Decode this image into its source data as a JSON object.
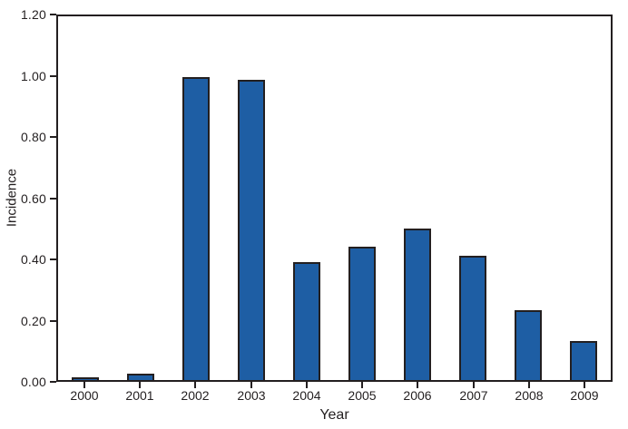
{
  "chart_data": {
    "type": "bar",
    "title": "",
    "xlabel": "Year",
    "ylabel": "Incidence",
    "categories": [
      "2000",
      "2001",
      "2002",
      "2003",
      "2004",
      "2005",
      "2006",
      "2007",
      "2008",
      "2009"
    ],
    "values": [
      0.01,
      0.02,
      1.0,
      0.99,
      0.39,
      0.44,
      0.5,
      0.41,
      0.23,
      0.13
    ],
    "ylim": [
      0,
      1.2
    ],
    "yticks": [
      0.0,
      0.2,
      0.4,
      0.6,
      0.8,
      1.0,
      1.2
    ],
    "ytick_labels": [
      "0.00",
      "0.20",
      "0.40",
      "0.60",
      "0.80",
      "1.00",
      "1.20"
    ],
    "grid": false,
    "legend": null,
    "frame": "full-box",
    "colors": {
      "bar_fill": "#1e5ea4",
      "bar_edge": "#231f20",
      "axis": "#231f20",
      "text": "#231f20",
      "background": "#ffffff"
    }
  }
}
